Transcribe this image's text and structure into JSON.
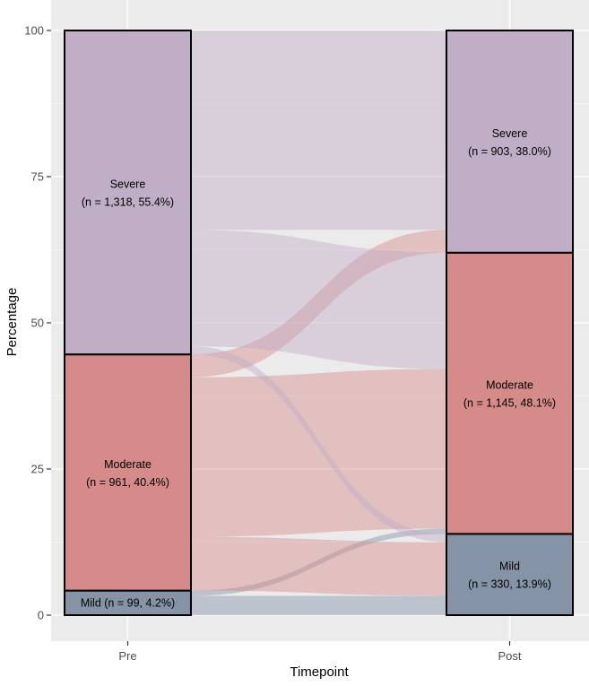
{
  "chart_data": {
    "type": "alluvial",
    "title": "",
    "xlabel": "Timepoint",
    "ylabel": "Percentage",
    "ylim": [
      0,
      100
    ],
    "yticks": [
      0,
      25,
      50,
      75,
      100
    ],
    "categories": [
      "Pre",
      "Post"
    ],
    "grid": true,
    "colors": {
      "Severe": "#c0aec6",
      "Moderate": "#d48b89",
      "Mild": "#8593a6",
      "panel": "#ebebeb",
      "grid": "#ffffff"
    },
    "stratum_order_bottom_to_top": [
      "Mild",
      "Moderate",
      "Severe"
    ],
    "strata": {
      "Pre": [
        {
          "name": "Mild",
          "n": 99,
          "pct": 4.2,
          "label": "Mild (n = 99, 4.2%)"
        },
        {
          "name": "Moderate",
          "n": 961,
          "pct": 40.4,
          "label_name": "Moderate",
          "label_detail": "(n = 961, 40.4%)"
        },
        {
          "name": "Severe",
          "n": 1318,
          "pct": 55.4,
          "label_name": "Severe",
          "label_detail": "(n = 1,318, 55.4%)"
        }
      ],
      "Post": [
        {
          "name": "Mild",
          "n": 330,
          "pct": 13.9,
          "label_name": "Mild",
          "label_detail": "(n = 330, 13.9%)"
        },
        {
          "name": "Moderate",
          "n": 1145,
          "pct": 48.1,
          "label_name": "Moderate",
          "label_detail": "(n = 1,145, 48.1%)"
        },
        {
          "name": "Severe",
          "n": 903,
          "pct": 38.0,
          "label_name": "Severe",
          "label_detail": "(n = 903, 38.0%)"
        }
      ]
    },
    "flows": [
      {
        "from": "Mild",
        "to": "Mild",
        "pct": 3.3
      },
      {
        "from": "Mild",
        "to": "Moderate",
        "pct": 0.9
      },
      {
        "from": "Moderate",
        "to": "Mild",
        "pct": 9.2
      },
      {
        "from": "Moderate",
        "to": "Moderate",
        "pct": 27.3
      },
      {
        "from": "Moderate",
        "to": "Severe",
        "pct": 3.9
      },
      {
        "from": "Severe",
        "to": "Mild",
        "pct": 1.4
      },
      {
        "from": "Severe",
        "to": "Moderate",
        "pct": 19.9
      },
      {
        "from": "Severe",
        "to": "Severe",
        "pct": 34.1
      }
    ]
  }
}
